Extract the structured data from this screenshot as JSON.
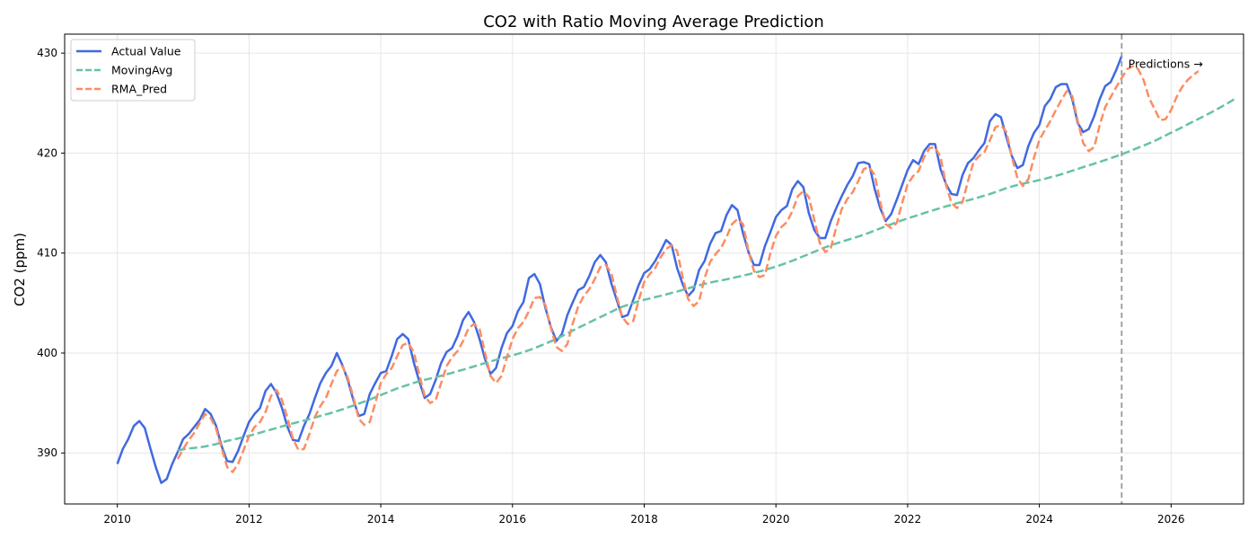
{
  "chart_data": {
    "type": "line",
    "title": "CO2 with Ratio Moving Average Prediction",
    "xlabel": "",
    "ylabel": "CO2 (ppm)",
    "xlim": [
      2009.2,
      2027.1
    ],
    "ylim": [
      384.9,
      431.9
    ],
    "x_ticks": [
      2010,
      2012,
      2014,
      2016,
      2018,
      2020,
      2022,
      2024,
      2026
    ],
    "y_ticks": [
      390,
      400,
      410,
      420,
      430
    ],
    "grid": true,
    "legend_position": "upper-left",
    "annotation": {
      "text": "Predictions →",
      "x": 2025.35,
      "y": 428.9
    },
    "divider_x": 2025.25,
    "series": [
      {
        "name": "Actual Value",
        "color": "#4169E1",
        "style": "solid",
        "x_start": 2010.0,
        "x_step": 0.08333,
        "values": [
          388.9,
          390.4,
          391.4,
          392.7,
          393.2,
          392.5,
          390.5,
          388.6,
          387.0,
          387.4,
          388.9,
          390.1,
          391.4,
          391.9,
          392.6,
          393.3,
          394.4,
          393.9,
          392.7,
          390.7,
          389.2,
          389.1,
          390.2,
          391.7,
          393.1,
          393.9,
          394.5,
          396.2,
          396.9,
          396.0,
          394.5,
          392.6,
          391.3,
          391.2,
          392.7,
          393.9,
          395.5,
          397.0,
          398.0,
          398.7,
          400.0,
          398.8,
          397.3,
          395.3,
          393.7,
          393.9,
          395.9,
          397.0,
          398.0,
          398.2,
          399.7,
          401.4,
          401.9,
          401.4,
          399.1,
          397.2,
          395.5,
          395.9,
          397.3,
          399.0,
          400.1,
          400.5,
          401.7,
          403.3,
          404.1,
          403.1,
          401.4,
          399.4,
          397.9,
          398.5,
          400.5,
          402.0,
          402.7,
          404.2,
          405.1,
          407.5,
          407.9,
          406.9,
          404.5,
          402.6,
          401.2,
          401.9,
          403.8,
          405.1,
          406.3,
          406.6,
          407.7,
          409.1,
          409.8,
          409.1,
          407.0,
          405.3,
          403.6,
          403.8,
          405.3,
          406.8,
          408.0,
          408.4,
          409.2,
          410.2,
          411.3,
          410.8,
          408.5,
          406.9,
          405.7,
          406.3,
          408.3,
          409.2,
          410.9,
          412.0,
          412.2,
          413.8,
          414.8,
          414.3,
          412.0,
          410.1,
          408.8,
          408.8,
          410.7,
          412.1,
          413.6,
          414.3,
          414.7,
          416.4,
          417.2,
          416.6,
          414.0,
          412.3,
          411.5,
          411.5,
          413.2,
          414.5,
          415.7,
          416.8,
          417.7,
          419.0,
          419.1,
          418.9,
          416.4,
          414.5,
          413.2,
          413.9,
          415.3,
          416.8,
          418.3,
          419.3,
          418.9,
          420.2,
          420.9,
          420.9,
          418.4,
          416.9,
          415.9,
          415.8,
          417.8,
          419.0,
          419.5,
          420.3,
          421.0,
          423.2,
          423.9,
          423.6,
          421.6,
          419.7,
          418.5,
          418.8,
          420.7,
          422.0,
          422.8,
          424.7,
          425.4,
          426.6,
          426.9,
          426.9,
          425.4,
          423.0,
          422.1,
          422.4,
          423.7,
          425.4,
          426.7,
          427.1,
          428.3,
          429.7
        ]
      },
      {
        "name": "MovingAvg",
        "color": "#66C2A5",
        "style": "dashed",
        "x_start": 2010.917,
        "x_step": 0.08333,
        "values": [
          390.24,
          390.37,
          390.45,
          390.51,
          390.57,
          390.65,
          390.78,
          390.89,
          391.05,
          391.21,
          391.33,
          391.45,
          391.58,
          391.72,
          391.87,
          392.03,
          392.19,
          392.34,
          392.5,
          392.66,
          392.82,
          392.96,
          393.1,
          393.24,
          393.39,
          393.54,
          393.71,
          393.86,
          394.01,
          394.18,
          394.36,
          394.56,
          394.75,
          394.95,
          395.14,
          395.35,
          395.57,
          395.79,
          396.02,
          396.24,
          396.46,
          396.64,
          396.82,
          397.0,
          397.17,
          397.32,
          397.45,
          397.58,
          397.72,
          397.87,
          398.02,
          398.18,
          398.33,
          398.5,
          398.66,
          398.83,
          399.0,
          399.16,
          399.32,
          399.47,
          399.62,
          399.76,
          399.92,
          400.1,
          400.28,
          400.49,
          400.71,
          400.93,
          401.17,
          401.41,
          401.69,
          401.96,
          402.25,
          402.53,
          402.79,
          403.06,
          403.33,
          403.59,
          403.85,
          404.12,
          404.39,
          404.63,
          404.81,
          404.99,
          405.18,
          405.33,
          405.45,
          405.59,
          405.72,
          405.86,
          406.01,
          406.15,
          406.32,
          406.47,
          406.63,
          406.78,
          406.92,
          407.05,
          407.16,
          407.27,
          407.37,
          407.5,
          407.62,
          407.74,
          407.87,
          408.02,
          408.16,
          408.3,
          408.48,
          408.64,
          408.83,
          409.02,
          409.23,
          409.45,
          409.68,
          409.9,
          410.13,
          410.36,
          410.58,
          410.78,
          410.96,
          411.14,
          411.31,
          411.48,
          411.65,
          411.83,
          412.04,
          412.25,
          412.46,
          412.68,
          412.88,
          413.09,
          413.28,
          413.47,
          413.64,
          413.81,
          414.0,
          414.17,
          414.34,
          414.51,
          414.67,
          414.82,
          414.99,
          415.13,
          415.27,
          415.42,
          415.58,
          415.74,
          415.91,
          416.1,
          416.3,
          416.49,
          416.66,
          416.81,
          416.94,
          417.06,
          417.17,
          417.3,
          417.43,
          417.58,
          417.72,
          417.88,
          418.06,
          418.24,
          418.41,
          418.6,
          418.77,
          418.94,
          419.12,
          419.3,
          419.49,
          419.68,
          419.88,
          420.09,
          420.31,
          420.54,
          420.76,
          420.98,
          421.22,
          421.49,
          421.77,
          422.04,
          422.31,
          422.58,
          422.87,
          423.15,
          423.42,
          423.7,
          423.98,
          424.27,
          424.58,
          424.9,
          425.21,
          425.56
        ]
      },
      {
        "name": "RMA_Pred",
        "color": "#FC8D62",
        "style": "dashed",
        "x_start": 2010.917,
        "x_step": 0.08333,
        "values": [
          389.4,
          390.4,
          391.3,
          392.0,
          393.0,
          393.9,
          393.5,
          392.4,
          390.5,
          388.6,
          388.1,
          388.9,
          390.3,
          391.7,
          392.6,
          393.1,
          394.1,
          395.7,
          396.3,
          395.3,
          393.5,
          391.4,
          390.3,
          390.4,
          391.9,
          393.6,
          394.7,
          395.5,
          396.9,
          398.2,
          398.7,
          397.5,
          395.6,
          393.4,
          392.8,
          393.1,
          395.0,
          397.0,
          397.9,
          398.5,
          399.7,
          400.8,
          401.0,
          400.1,
          397.9,
          395.7,
          395.0,
          395.3,
          397.0,
          398.7,
          399.6,
          400.2,
          401.2,
          402.5,
          402.9,
          402.4,
          400.0,
          397.7,
          397.0,
          397.7,
          399.6,
          401.4,
          402.5,
          403.1,
          404.2,
          405.5,
          405.6,
          404.8,
          402.5,
          400.6,
          400.2,
          400.9,
          403.0,
          404.7,
          405.7,
          406.4,
          407.4,
          408.6,
          408.8,
          408.0,
          405.7,
          403.6,
          402.9,
          403.2,
          405.3,
          407.1,
          407.9,
          408.5,
          409.6,
          410.4,
          410.8,
          410.2,
          407.6,
          405.4,
          404.7,
          405.2,
          407.5,
          409.1,
          409.9,
          410.5,
          411.6,
          412.9,
          413.4,
          412.9,
          410.2,
          408.2,
          407.6,
          407.8,
          410.0,
          411.7,
          412.6,
          413.1,
          414.2,
          415.7,
          416.2,
          415.6,
          413.3,
          411.0,
          410.1,
          410.5,
          412.6,
          414.4,
          415.4,
          416.1,
          417.2,
          418.4,
          418.6,
          417.8,
          415.1,
          412.9,
          412.5,
          413.0,
          415.0,
          416.9,
          417.7,
          418.2,
          419.6,
          420.5,
          420.6,
          419.6,
          416.8,
          415.0,
          414.5,
          415.1,
          417.2,
          419.1,
          419.7,
          420.1,
          421.3,
          422.6,
          422.8,
          422.1,
          419.6,
          417.5,
          416.7,
          417.4,
          419.5,
          421.3,
          422.3,
          423.2,
          424.3,
          425.3,
          426.2,
          425.7,
          423.2,
          421.0,
          420.2,
          420.6,
          422.8,
          424.6,
          425.6,
          426.6,
          427.5,
          428.4,
          428.7,
          428.4,
          427.3,
          425.5,
          424.4,
          423.3,
          423.4,
          424.3,
          425.6,
          426.6,
          427.3,
          427.8,
          428.2
        ]
      }
    ]
  }
}
